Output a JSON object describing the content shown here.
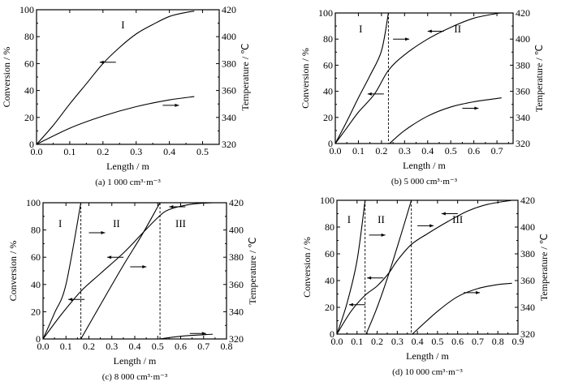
{
  "chart_data": [
    {
      "type": "line",
      "caption": "(a) 1 000 cm³·m⁻³",
      "xlabel": "Length / m",
      "ylabel": "Conversion / %",
      "y2label": "Temperature / ℃",
      "xlim": [
        0,
        0.55
      ],
      "ylim": [
        0,
        100
      ],
      "y2lim": [
        320,
        420
      ],
      "xticks": [
        "0.0",
        "0.1",
        "0.2",
        "0.3",
        "0.4",
        "0.5"
      ],
      "yticks": [
        "0",
        "20",
        "40",
        "60",
        "80",
        "100"
      ],
      "y2ticks": [
        "320",
        "340",
        "360",
        "380",
        "400",
        "420"
      ],
      "series": [
        {
          "name": "conversion",
          "axis": "left",
          "x": [
            0,
            0.05,
            0.1,
            0.15,
            0.2,
            0.25,
            0.3,
            0.35,
            0.4,
            0.45,
            0.475
          ],
          "y": [
            0,
            14,
            30,
            45,
            60,
            72,
            82,
            89,
            95,
            98,
            99
          ]
        },
        {
          "name": "temperature",
          "axis": "right",
          "x": [
            0,
            0.1,
            0.2,
            0.3,
            0.4,
            0.475
          ],
          "y": [
            320,
            332,
            341,
            348,
            353,
            355.5
          ]
        }
      ],
      "dividers": [],
      "regions": [
        {
          "label": "I",
          "x": 0.26,
          "y": 86
        }
      ],
      "arrows": [
        {
          "x": 0.19,
          "y": 61,
          "dir": "left"
        },
        {
          "x": 0.38,
          "y": 29,
          "dir": "right"
        }
      ]
    },
    {
      "type": "line",
      "caption": "(b) 5 000 cm³·m⁻³",
      "xlabel": "Length / m",
      "ylabel": "Conversion / %",
      "y2label": "Temperature / ℃",
      "xlim": [
        0,
        0.77
      ],
      "ylim": [
        0,
        100
      ],
      "y2lim": [
        320,
        420
      ],
      "xticks": [
        "0.0",
        "0.1",
        "0.2",
        "0.3",
        "0.4",
        "0.5",
        "0.6",
        "0.7"
      ],
      "yticks": [
        "0",
        "20",
        "40",
        "60",
        "80",
        "100"
      ],
      "y2ticks": [
        "320",
        "340",
        "360",
        "380",
        "400",
        "420"
      ],
      "series": [
        {
          "name": "conversion",
          "axis": "left",
          "x": [
            0,
            0.05,
            0.1,
            0.17,
            0.23,
            0.3,
            0.4,
            0.5,
            0.6,
            0.7,
            0.72
          ],
          "y": [
            0,
            12,
            24,
            38,
            56,
            68,
            80,
            89,
            96,
            99.6,
            100
          ]
        },
        {
          "name": "temperature-bed-I",
          "axis": "right",
          "x": [
            0,
            0.05,
            0.1,
            0.15,
            0.2,
            0.23
          ],
          "y": [
            320,
            337,
            355,
            372,
            391,
            420
          ]
        },
        {
          "name": "temperature-bed-II",
          "axis": "right",
          "x": [
            0.235,
            0.3,
            0.4,
            0.5,
            0.6,
            0.7,
            0.72
          ],
          "y": [
            320,
            330,
            341,
            348,
            352,
            354.5,
            355
          ]
        }
      ],
      "dividers": [
        0.23
      ],
      "regions": [
        {
          "label": "I",
          "x": 0.11,
          "y": 85
        },
        {
          "label": "II",
          "x": 0.53,
          "y": 85
        }
      ],
      "arrows": [
        {
          "x": 0.14,
          "y": 38,
          "dir": "left"
        },
        {
          "x": 0.25,
          "y": 80,
          "dir": "right"
        },
        {
          "x": 0.4,
          "y": 86,
          "dir": "left"
        },
        {
          "x": 0.55,
          "y": 27,
          "dir": "right"
        }
      ]
    },
    {
      "type": "line",
      "caption": "(c) 8 000 cm³·m⁻³",
      "xlabel": "Length / m",
      "ylabel": "Conversion / %",
      "y2label": "Temperature / ℃",
      "xlim": [
        0,
        0.8
      ],
      "ylim": [
        0,
        100
      ],
      "y2lim": [
        320,
        420
      ],
      "xticks": [
        "0.0",
        "0.1",
        "0.2",
        "0.3",
        "0.4",
        "0.5",
        "0.6",
        "0.7",
        "0.8"
      ],
      "yticks": [
        "0",
        "20",
        "40",
        "60",
        "80",
        "100"
      ],
      "y2ticks": [
        "320",
        "340",
        "360",
        "380",
        "400",
        "420"
      ],
      "series": [
        {
          "name": "conversion",
          "axis": "left",
          "x": [
            0,
            0.08,
            0.165,
            0.25,
            0.35,
            0.43,
            0.5,
            0.55,
            0.65,
            0.74
          ],
          "y": [
            0,
            18,
            35,
            48,
            63,
            77,
            89,
            95,
            99,
            100
          ]
        },
        {
          "name": "temperature-bed-I",
          "axis": "right",
          "x": [
            0,
            0.05,
            0.1,
            0.165
          ],
          "y": [
            320,
            339,
            360,
            420
          ]
        },
        {
          "name": "temperature-bed-II",
          "axis": "right",
          "x": [
            0.165,
            0.25,
            0.35,
            0.43,
            0.5,
            0.51
          ],
          "y": [
            320,
            345,
            374,
            396,
            417,
            420
          ]
        },
        {
          "name": "temperature-bed-III",
          "axis": "right",
          "x": [
            0.51,
            0.6,
            0.74
          ],
          "y": [
            320,
            322,
            323.5
          ]
        }
      ],
      "dividers": [
        0.165,
        0.51
      ],
      "regions": [
        {
          "label": "I",
          "x": 0.075,
          "y": 82
        },
        {
          "label": "II",
          "x": 0.32,
          "y": 82
        },
        {
          "label": "III",
          "x": 0.6,
          "y": 82
        }
      ],
      "arrows": [
        {
          "x": 0.11,
          "y": 29,
          "dir": "left"
        },
        {
          "x": 0.2,
          "y": 78,
          "dir": "right"
        },
        {
          "x": 0.28,
          "y": 60,
          "dir": "left"
        },
        {
          "x": 0.38,
          "y": 53,
          "dir": "right"
        },
        {
          "x": 0.55,
          "y": 97,
          "dir": "left"
        },
        {
          "x": 0.64,
          "y": 4,
          "dir": "right"
        }
      ]
    },
    {
      "type": "line",
      "caption": "(d) 10 000 cm³·m⁻³",
      "xlabel": "Length / m",
      "ylabel": "Conversion / %",
      "y2label": "Temperature / ℃",
      "xlim": [
        0,
        0.9
      ],
      "ylim": [
        0,
        100
      ],
      "y2lim": [
        320,
        420
      ],
      "xticks": [
        "0.0",
        "0.1",
        "0.2",
        "0.3",
        "0.4",
        "0.5",
        "0.6",
        "0.7",
        "0.8",
        "0.9"
      ],
      "yticks": [
        "0",
        "20",
        "40",
        "60",
        "80",
        "100"
      ],
      "y2ticks": [
        "320",
        "340",
        "360",
        "380",
        "400",
        "420"
      ],
      "series": [
        {
          "name": "conversion",
          "axis": "left",
          "x": [
            0,
            0.07,
            0.14,
            0.2,
            0.26,
            0.3,
            0.37,
            0.45,
            0.55,
            0.65,
            0.75,
            0.87
          ],
          "y": [
            0,
            17,
            29,
            36,
            46,
            55,
            67,
            75,
            84,
            92,
            97,
            100
          ]
        },
        {
          "name": "temperature-bed-I",
          "axis": "right",
          "x": [
            0,
            0.05,
            0.1,
            0.14
          ],
          "y": [
            320,
            343,
            375,
            420
          ]
        },
        {
          "name": "temperature-bed-II",
          "axis": "right",
          "x": [
            0.145,
            0.2,
            0.26,
            0.32,
            0.37
          ],
          "y": [
            320,
            340,
            366,
            395,
            420
          ]
        },
        {
          "name": "temperature-bed-III",
          "axis": "right",
          "x": [
            0.375,
            0.5,
            0.6,
            0.7,
            0.8,
            0.87
          ],
          "y": [
            320,
            337,
            348,
            354,
            357,
            358
          ]
        }
      ],
      "dividers": [
        0.14,
        0.37
      ],
      "regions": [
        {
          "label": "I",
          "x": 0.06,
          "y": 83
        },
        {
          "label": "II",
          "x": 0.22,
          "y": 83
        },
        {
          "label": "III",
          "x": 0.6,
          "y": 83
        }
      ],
      "arrows": [
        {
          "x": 0.06,
          "y": 22,
          "dir": "left"
        },
        {
          "x": 0.16,
          "y": 74,
          "dir": "right"
        },
        {
          "x": 0.15,
          "y": 42,
          "dir": "left"
        },
        {
          "x": 0.4,
          "y": 81,
          "dir": "right"
        },
        {
          "x": 0.52,
          "y": 90,
          "dir": "left"
        },
        {
          "x": 0.63,
          "y": 31,
          "dir": "right"
        }
      ]
    }
  ]
}
